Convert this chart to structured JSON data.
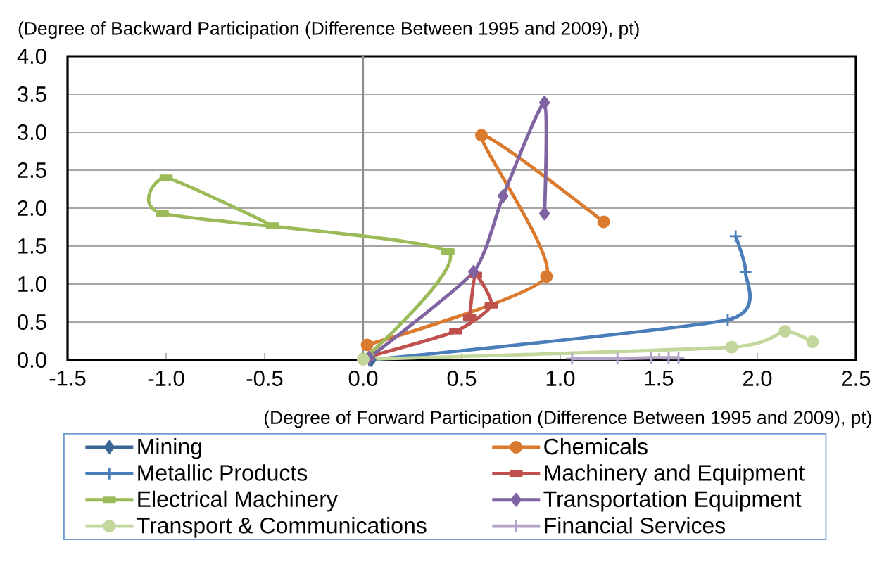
{
  "chart_data": {
    "type": "line",
    "ylabel": "(Degree of Backward Participation (Difference Between 1995 and 2009), pt)",
    "xlabel": "(Degree of Forward Participation (Difference Between 1995 and 2009), pt)",
    "xlim": [
      -1.5,
      2.5
    ],
    "ylim": [
      0,
      4
    ],
    "xticks": [
      {
        "value": -1.5,
        "label": "-1.5"
      },
      {
        "value": -1,
        "label": "-1.0"
      },
      {
        "value": -0.5,
        "label": "-0.5"
      },
      {
        "value": 0,
        "label": "0.0"
      },
      {
        "value": 0.5,
        "label": "0.5"
      },
      {
        "value": 1,
        "label": "1.0"
      },
      {
        "value": 1.5,
        "label": "1.5"
      },
      {
        "value": 2,
        "label": "2.0"
      },
      {
        "value": 2.5,
        "label": "2.5"
      }
    ],
    "yticks": [
      {
        "value": 0,
        "label": "0.0"
      },
      {
        "value": 0.5,
        "label": "0.5"
      },
      {
        "value": 1,
        "label": "1.0"
      },
      {
        "value": 1.5,
        "label": "1.5"
      },
      {
        "value": 2,
        "label": "2.0"
      },
      {
        "value": 2.5,
        "label": "2.5"
      },
      {
        "value": 3,
        "label": "3.0"
      },
      {
        "value": 3.5,
        "label": "3.5"
      },
      {
        "value": 4,
        "label": "4.0"
      }
    ],
    "grid": "y",
    "legend": "bottom",
    "ref_lines": [
      {
        "axis": "x",
        "value": 0,
        "color": "#8c8c8c"
      }
    ],
    "series": [
      {
        "name": "Mining",
        "color": "#3c6696",
        "marker": "diamond",
        "x": [
          0.04
        ],
        "values": [
          0.0
        ]
      },
      {
        "name": "Chemicals",
        "color": "#d97a2e",
        "marker": "circle",
        "x": [
          0.02,
          0.93,
          0.6,
          1.22
        ],
        "values": [
          0.2,
          1.1,
          2.96,
          1.82
        ]
      },
      {
        "name": "Metallic Products",
        "color": "#4a7ebb",
        "marker": "cross",
        "x": [
          0.03,
          1.85,
          1.94,
          1.89
        ],
        "values": [
          0.0,
          0.53,
          1.16,
          1.63
        ]
      },
      {
        "name": "Machinery and Equipment",
        "color": "#c0504d",
        "marker": "square",
        "x": [
          0.02,
          0.47,
          0.65,
          0.57,
          0.54
        ],
        "values": [
          0.04,
          0.38,
          0.72,
          1.12,
          0.56
        ]
      },
      {
        "name": "Electrical Machinery",
        "color": "#9bbb59",
        "marker": "square",
        "x": [
          0.02,
          0.43,
          -1.02,
          -1.0,
          -0.46
        ],
        "values": [
          0.05,
          1.43,
          1.93,
          2.4,
          1.77
        ]
      },
      {
        "name": "Transportation Equipment",
        "color": "#8064a2",
        "marker": "diamond",
        "x": [
          0.03,
          0.56,
          0.71,
          0.92,
          0.92
        ],
        "values": [
          0.03,
          1.16,
          2.16,
          3.39,
          1.93
        ]
      },
      {
        "name": "Transport & Communications",
        "color": "#c3d69b",
        "marker": "circle",
        "x": [
          0.0,
          1.87,
          2.14,
          2.28
        ],
        "values": [
          0.01,
          0.17,
          0.38,
          0.24
        ]
      },
      {
        "name": "Financial Services",
        "color": "#b3a2c7",
        "marker": "cross",
        "x": [
          1.06,
          1.29,
          1.46,
          1.55,
          1.6
        ],
        "values": [
          0.02,
          0.02,
          0.03,
          0.03,
          0.03
        ]
      }
    ]
  }
}
